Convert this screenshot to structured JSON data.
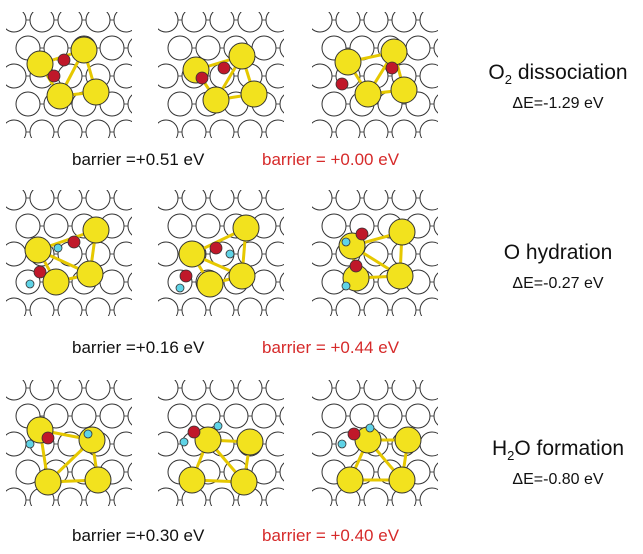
{
  "rows": [
    {
      "title_prefix": "O",
      "title_sub": "2",
      "title_suffix": " dissociation",
      "delta_e": "ΔE=-1.29 eV",
      "barrier_1": "barrier =+0.51 eV",
      "barrier_2": "barrier = +0.00 eV"
    },
    {
      "title_prefix": "",
      "title_sub": "",
      "title_suffix": "O hydration",
      "delta_e": "ΔE=-0.27 eV",
      "barrier_1": "barrier =+0.16 eV",
      "barrier_2": "barrier = +0.44 eV"
    },
    {
      "title_prefix": "H",
      "title_sub": "2",
      "title_suffix": "O formation",
      "delta_e": "ΔE=-0.80 eV",
      "barrier_1": "barrier =+0.30 eV",
      "barrier_2": "barrier = +0.40 eV"
    }
  ],
  "colors": {
    "cluster_atom": "#f2e21e",
    "oxygen": "#c0182a",
    "hydrogen": "#5fd3e6",
    "substrate": "#ffffff",
    "bond": "#e6c800",
    "barrier_highlight": "#d62a2a"
  }
}
